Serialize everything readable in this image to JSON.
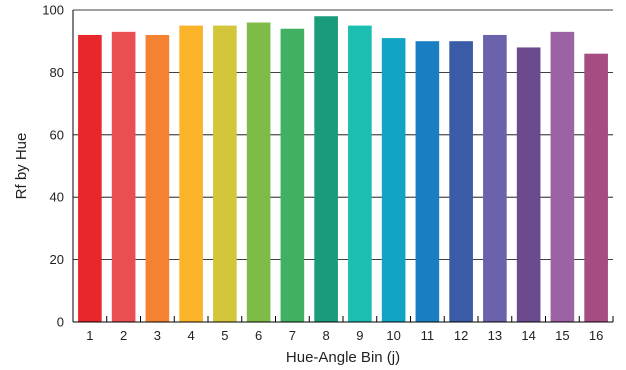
{
  "chart_data": {
    "type": "bar",
    "categories": [
      "1",
      "2",
      "3",
      "4",
      "5",
      "6",
      "7",
      "8",
      "9",
      "10",
      "11",
      "12",
      "13",
      "14",
      "15",
      "16"
    ],
    "values": [
      92,
      93,
      92,
      95,
      95,
      96,
      94,
      98,
      95,
      91,
      90,
      90,
      92,
      88,
      93,
      86
    ],
    "colors": [
      "#e8262c",
      "#e94e51",
      "#f58233",
      "#fbb42a",
      "#d4c63a",
      "#7fbb48",
      "#41b063",
      "#1a9b7a",
      "#1bbeb1",
      "#12a3c5",
      "#1a7fc2",
      "#3a5ba5",
      "#6a63ab",
      "#6b4b8e",
      "#9c62a3",
      "#a64c82"
    ],
    "xlabel": "Hue-Angle Bin (j)",
    "ylabel": "Rf by Hue",
    "ylim": [
      0,
      100
    ],
    "yticks": [
      0,
      20,
      40,
      60,
      80,
      100
    ],
    "grid": true
  }
}
